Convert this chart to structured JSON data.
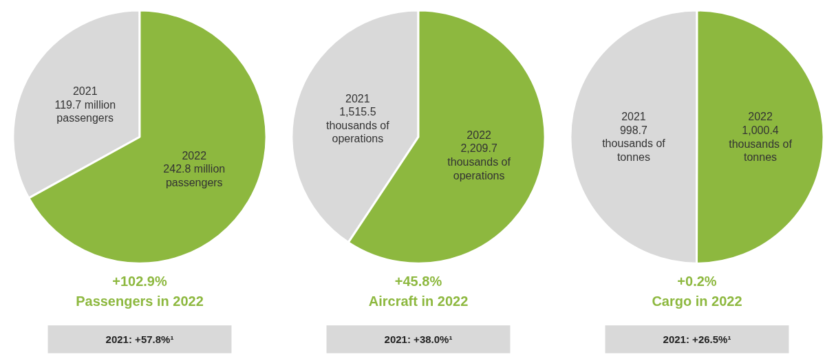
{
  "chart_data": [
    {
      "type": "pie",
      "categories": [
        "2021",
        "2022"
      ],
      "values": [
        119.7,
        242.8
      ],
      "colors": [
        "#d9d9d9",
        "#8db83f"
      ],
      "value_labels": [
        "119.7 million passengers",
        "242.8 million passengers"
      ],
      "annotations": [
        "+102.9%",
        "Passengers in 2022",
        "2021: +57.8%¹"
      ]
    },
    {
      "type": "pie",
      "categories": [
        "2021",
        "2022"
      ],
      "values": [
        1515.5,
        2209.7
      ],
      "colors": [
        "#d9d9d9",
        "#8db83f"
      ],
      "value_labels": [
        "1,515.5 thousands of operations",
        "2,209.7 thousands of operations"
      ],
      "annotations": [
        "+45.8%",
        "Aircraft in 2022",
        "2021: +38.0%¹"
      ]
    },
    {
      "type": "pie",
      "categories": [
        "2021",
        "2022"
      ],
      "values": [
        998.7,
        1000.4
      ],
      "colors": [
        "#d9d9d9",
        "#8db83f"
      ],
      "value_labels": [
        "998.7 thousands of tonnes",
        "1,000.4 thousands of tonnes"
      ],
      "annotations": [
        "+0.2%",
        "Cargo in 2022",
        "2021: +26.5%¹"
      ]
    }
  ]
}
